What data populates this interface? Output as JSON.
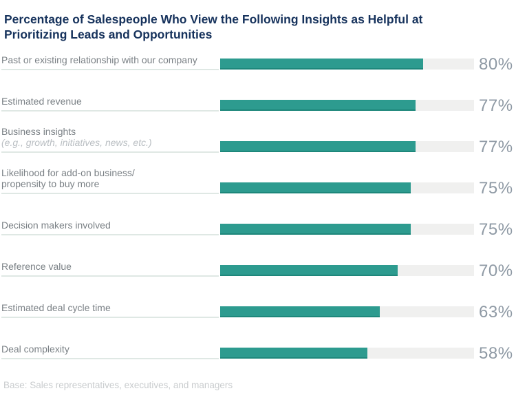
{
  "title": "Percentage of Salespeople Who View the Following Insights as Helpful at Prioritizing Leads and Opportunities",
  "footer": {
    "base_note": "Base: Sales representatives, executives, and managers"
  },
  "chart_data": {
    "type": "bar",
    "orientation": "horizontal",
    "title": "Percentage of Salespeople Who View the Following Insights as Helpful at Prioritizing Leads and Opportunities",
    "xlim": [
      0,
      100
    ],
    "value_suffix": "%",
    "grid": false,
    "legend": false,
    "categories": [
      "Past or existing relationship with our company",
      "Estimated revenue",
      "Business insights (e.g., growth, initiatives, news, etc.)",
      "Likelihood for add-on business/propensity to buy more",
      "Decision makers involved",
      "Reference value",
      "Estimated deal cycle time",
      "Deal complexity"
    ],
    "values": [
      80,
      77,
      77,
      75,
      75,
      70,
      63,
      58
    ],
    "rows": [
      {
        "label": "Past or existing relationship with our company",
        "note": "",
        "value": 80,
        "display": "80%"
      },
      {
        "label": "Estimated revenue",
        "note": "",
        "value": 77,
        "display": "77%"
      },
      {
        "label": "Business insights",
        "note": "(e.g., growth, initiatives, news, etc.)",
        "value": 77,
        "display": "77%"
      },
      {
        "label": "Likelihood for add-on business/\npropensity to buy more",
        "note": "",
        "value": 75,
        "display": "75%"
      },
      {
        "label": "Decision makers involved",
        "note": "",
        "value": 75,
        "display": "75%"
      },
      {
        "label": "Reference value",
        "note": "",
        "value": 70,
        "display": "70%"
      },
      {
        "label": "Estimated deal cycle time",
        "note": "",
        "value": 63,
        "display": "63%"
      },
      {
        "label": "Deal complexity",
        "note": "",
        "value": 58,
        "display": "58%"
      }
    ],
    "colors": {
      "bar": "#2D9B8F",
      "track": "#F0F0EF",
      "rule": "#DFE8E4",
      "title_text": "#16325C",
      "label_text": "#7A8085",
      "note_text": "#B9BEC2",
      "value_text": "#8E99A4",
      "footer_text": "#C9CCCE"
    }
  }
}
